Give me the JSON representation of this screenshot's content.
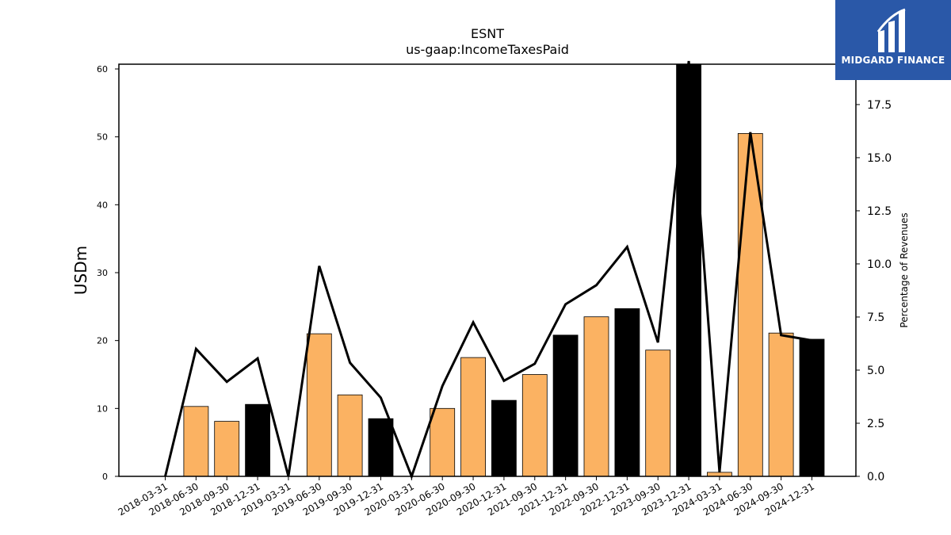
{
  "chart_data": {
    "type": "bar",
    "title": "ESNT",
    "subtitle": "us-gaap:IncomeTaxesPaid",
    "ylabel": "USDm",
    "y2label": "Percentage of Revenues",
    "ylim": [
      0,
      60.7
    ],
    "y2lim": [
      0,
      19.4
    ],
    "yticks": [
      0,
      10,
      20,
      30,
      40,
      50,
      60
    ],
    "y2ticks": [
      "0.0",
      "2.5",
      "5.0",
      "7.5",
      "10.0",
      "12.5",
      "15.0",
      "17.5"
    ],
    "categories": [
      "2018-03-31",
      "2018-06-30",
      "2018-09-30",
      "2018-12-31",
      "2019-03-31",
      "2019-06-30",
      "2019-09-30",
      "2019-12-31",
      "2020-03-31",
      "2020-06-30",
      "2020-09-30",
      "2020-12-31",
      "2021-09-30",
      "2021-12-31",
      "2022-09-30",
      "2022-12-31",
      "2023-09-30",
      "2023-12-31",
      "2024-03-31",
      "2024-06-30",
      "2024-09-30",
      "2024-12-31"
    ],
    "series": [
      {
        "kind": "bar",
        "values": [
          0,
          10.3,
          8.1,
          10.6,
          0,
          21.0,
          12.0,
          8.5,
          0,
          10.0,
          17.5,
          11.2,
          15.0,
          20.8,
          23.5,
          24.7,
          18.6,
          61.0,
          0.6,
          50.5,
          21.1,
          20.2
        ],
        "colors": [
          "#fbb262",
          "#fbb262",
          "#fbb262",
          "#000000",
          "#fbb262",
          "#fbb262",
          "#fbb262",
          "#000000",
          "#fbb262",
          "#fbb262",
          "#fbb262",
          "#000000",
          "#fbb262",
          "#000000",
          "#fbb262",
          "#000000",
          "#fbb262",
          "#000000",
          "#fbb262",
          "#fbb262",
          "#fbb262",
          "#000000"
        ]
      },
      {
        "kind": "line",
        "axis": "right",
        "color": "#000000",
        "values": [
          0,
          6.0,
          4.45,
          5.55,
          0,
          9.9,
          5.35,
          3.7,
          0,
          4.25,
          7.25,
          4.5,
          5.3,
          8.1,
          9.0,
          10.8,
          6.3,
          19.6,
          0.2,
          16.2,
          6.65,
          6.4
        ]
      }
    ],
    "grid": false,
    "legend": "none"
  },
  "logo": {
    "text": "MIDGARD FINANCE"
  }
}
